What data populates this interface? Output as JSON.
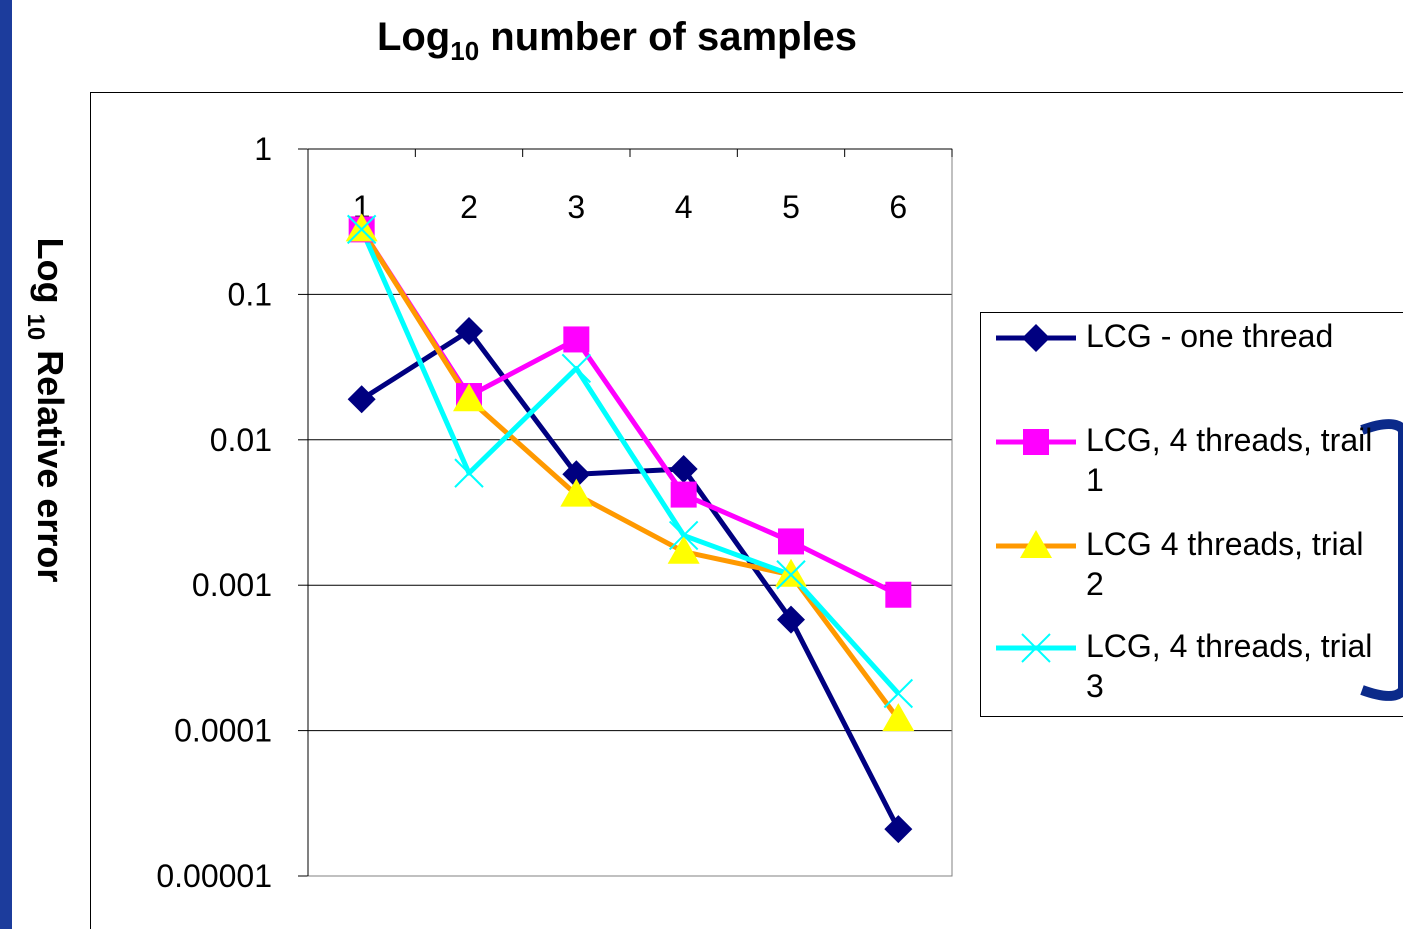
{
  "chart_data": {
    "type": "line",
    "title": {
      "base": "Log",
      "sub": "10",
      "rest": " number of samples"
    },
    "ylabel": {
      "base": "Log ",
      "sub": "10",
      "rest": " Relative error"
    },
    "categories": [
      "1",
      "2",
      "3",
      "4",
      "5",
      "6"
    ],
    "series": [
      {
        "name": "LCG - one thread",
        "color": "#000080",
        "marker": "diamond",
        "marker_color": "#000080",
        "values": [
          0.019,
          0.056,
          0.0058,
          0.0063,
          0.00058,
          2.1e-05
        ]
      },
      {
        "name": "LCG, 4 threads, trail 1",
        "color": "#ff00ff",
        "marker": "square",
        "marker_color": "#ff00ff",
        "values": [
          0.28,
          0.02,
          0.049,
          0.0042,
          0.002,
          0.00086
        ]
      },
      {
        "name": "LCG 4 threads, trial 2",
        "color": "#ff9900",
        "marker": "triangle",
        "marker_color": "#ffff00",
        "values": [
          0.28,
          0.019,
          0.0042,
          0.0017,
          0.00118,
          0.00012
        ]
      },
      {
        "name": "LCG, 4 threads, trial 3",
        "color": "#00ffff",
        "marker": "x",
        "marker_color": "#00ffff",
        "values": [
          0.28,
          0.0059,
          0.031,
          0.0022,
          0.00118,
          0.00018
        ]
      }
    ],
    "log_y": true,
    "ylim": [
      1e-05,
      1
    ],
    "yticks": [
      1,
      0.1,
      0.01,
      0.001,
      0.0001,
      1e-05
    ],
    "grid": true,
    "legend": "right"
  }
}
